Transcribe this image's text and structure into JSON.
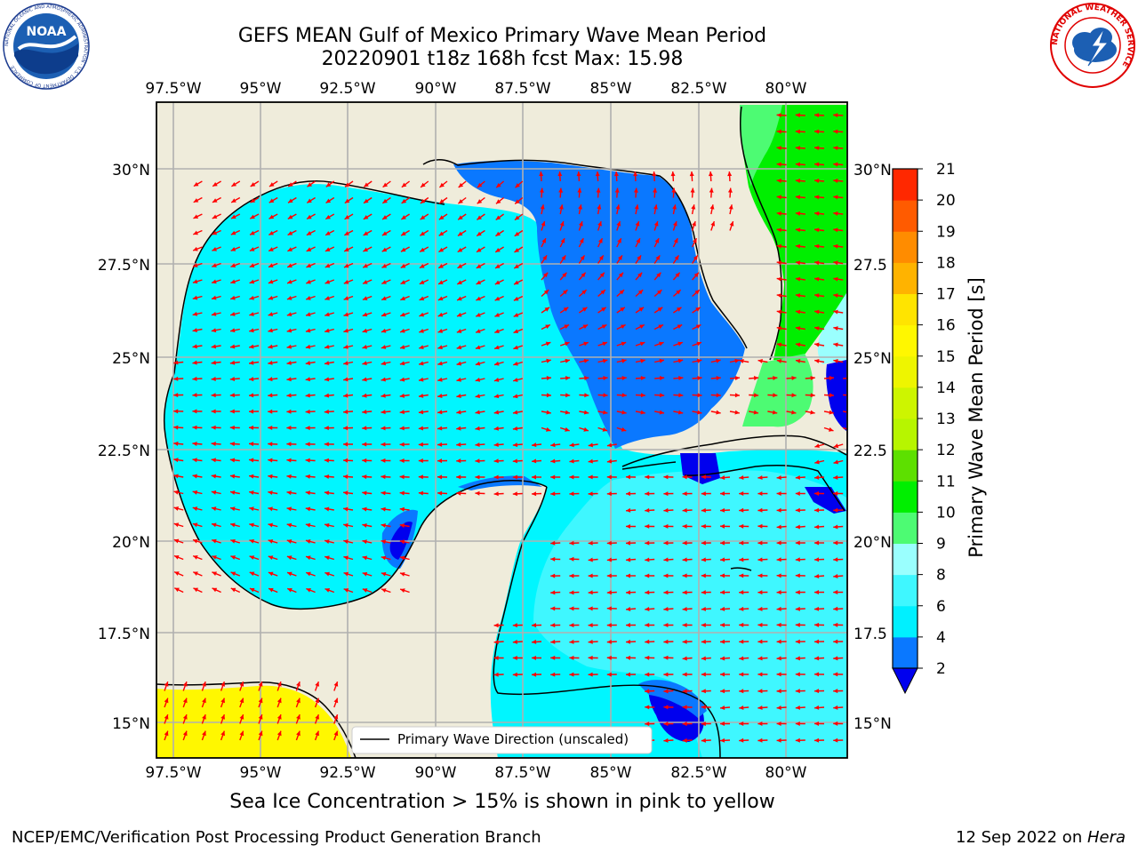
{
  "header": {
    "title_line1": "GEFS MEAN Gulf of Mexico Primary Wave Mean Period",
    "title_line2": "20220901 t18z 168h fcst   Max: 15.98"
  },
  "logos": {
    "noaa_text": "NOAA",
    "noaa_ring": "NATIONAL OCEANIC AND ATMOSPHERIC ADMINISTRATION · U.S. DEPARTMENT OF COMMERCE",
    "nws_ring": "NATIONAL WEATHER SERVICE"
  },
  "map": {
    "lon_ticks": [
      "97.5°W",
      "95°W",
      "92.5°W",
      "90°W",
      "87.5°W",
      "85°W",
      "82.5°W",
      "80°W"
    ],
    "lat_ticks_left": [
      "30°N",
      "27.5°N",
      "25°N",
      "22.5°N",
      "20°N",
      "17.5°N",
      "15°N"
    ],
    "lat_ticks_right": [
      "30°N",
      "27.5",
      "25°N",
      "22.5",
      "20°N",
      "17.5",
      "15°N"
    ],
    "legend_label": "Primary Wave Direction (unscaled)",
    "colors": {
      "land": "#efecdb",
      "arrow": "#ff0000",
      "grid": "#b0b0b0"
    }
  },
  "colorbar": {
    "label": "Primary Wave Mean Period [s]",
    "ticks": [
      "2",
      "4",
      "6",
      "8",
      "9",
      "10",
      "11",
      "12",
      "13",
      "14",
      "15",
      "16",
      "17",
      "18",
      "19",
      "20",
      "21"
    ],
    "colors": [
      "#0a78ff",
      "#00f0ff",
      "#3ff7ff",
      "#9afffe",
      "#4dfb73",
      "#00ef00",
      "#5de000",
      "#b7f500",
      "#cdf500",
      "#eef500",
      "#fff700",
      "#ffe400",
      "#ffb300",
      "#ff8c00",
      "#ff5b00",
      "#ff2800"
    ],
    "under_color": "#0000ee"
  },
  "footer": {
    "sea_ice_note": "Sea Ice Concentration > 15% is shown in pink to yellow",
    "left": "NCEP/EMC/Verification Post Processing Product Generation Branch",
    "right_date": "12 Sep 2022 on ",
    "right_host": "Hera"
  }
}
